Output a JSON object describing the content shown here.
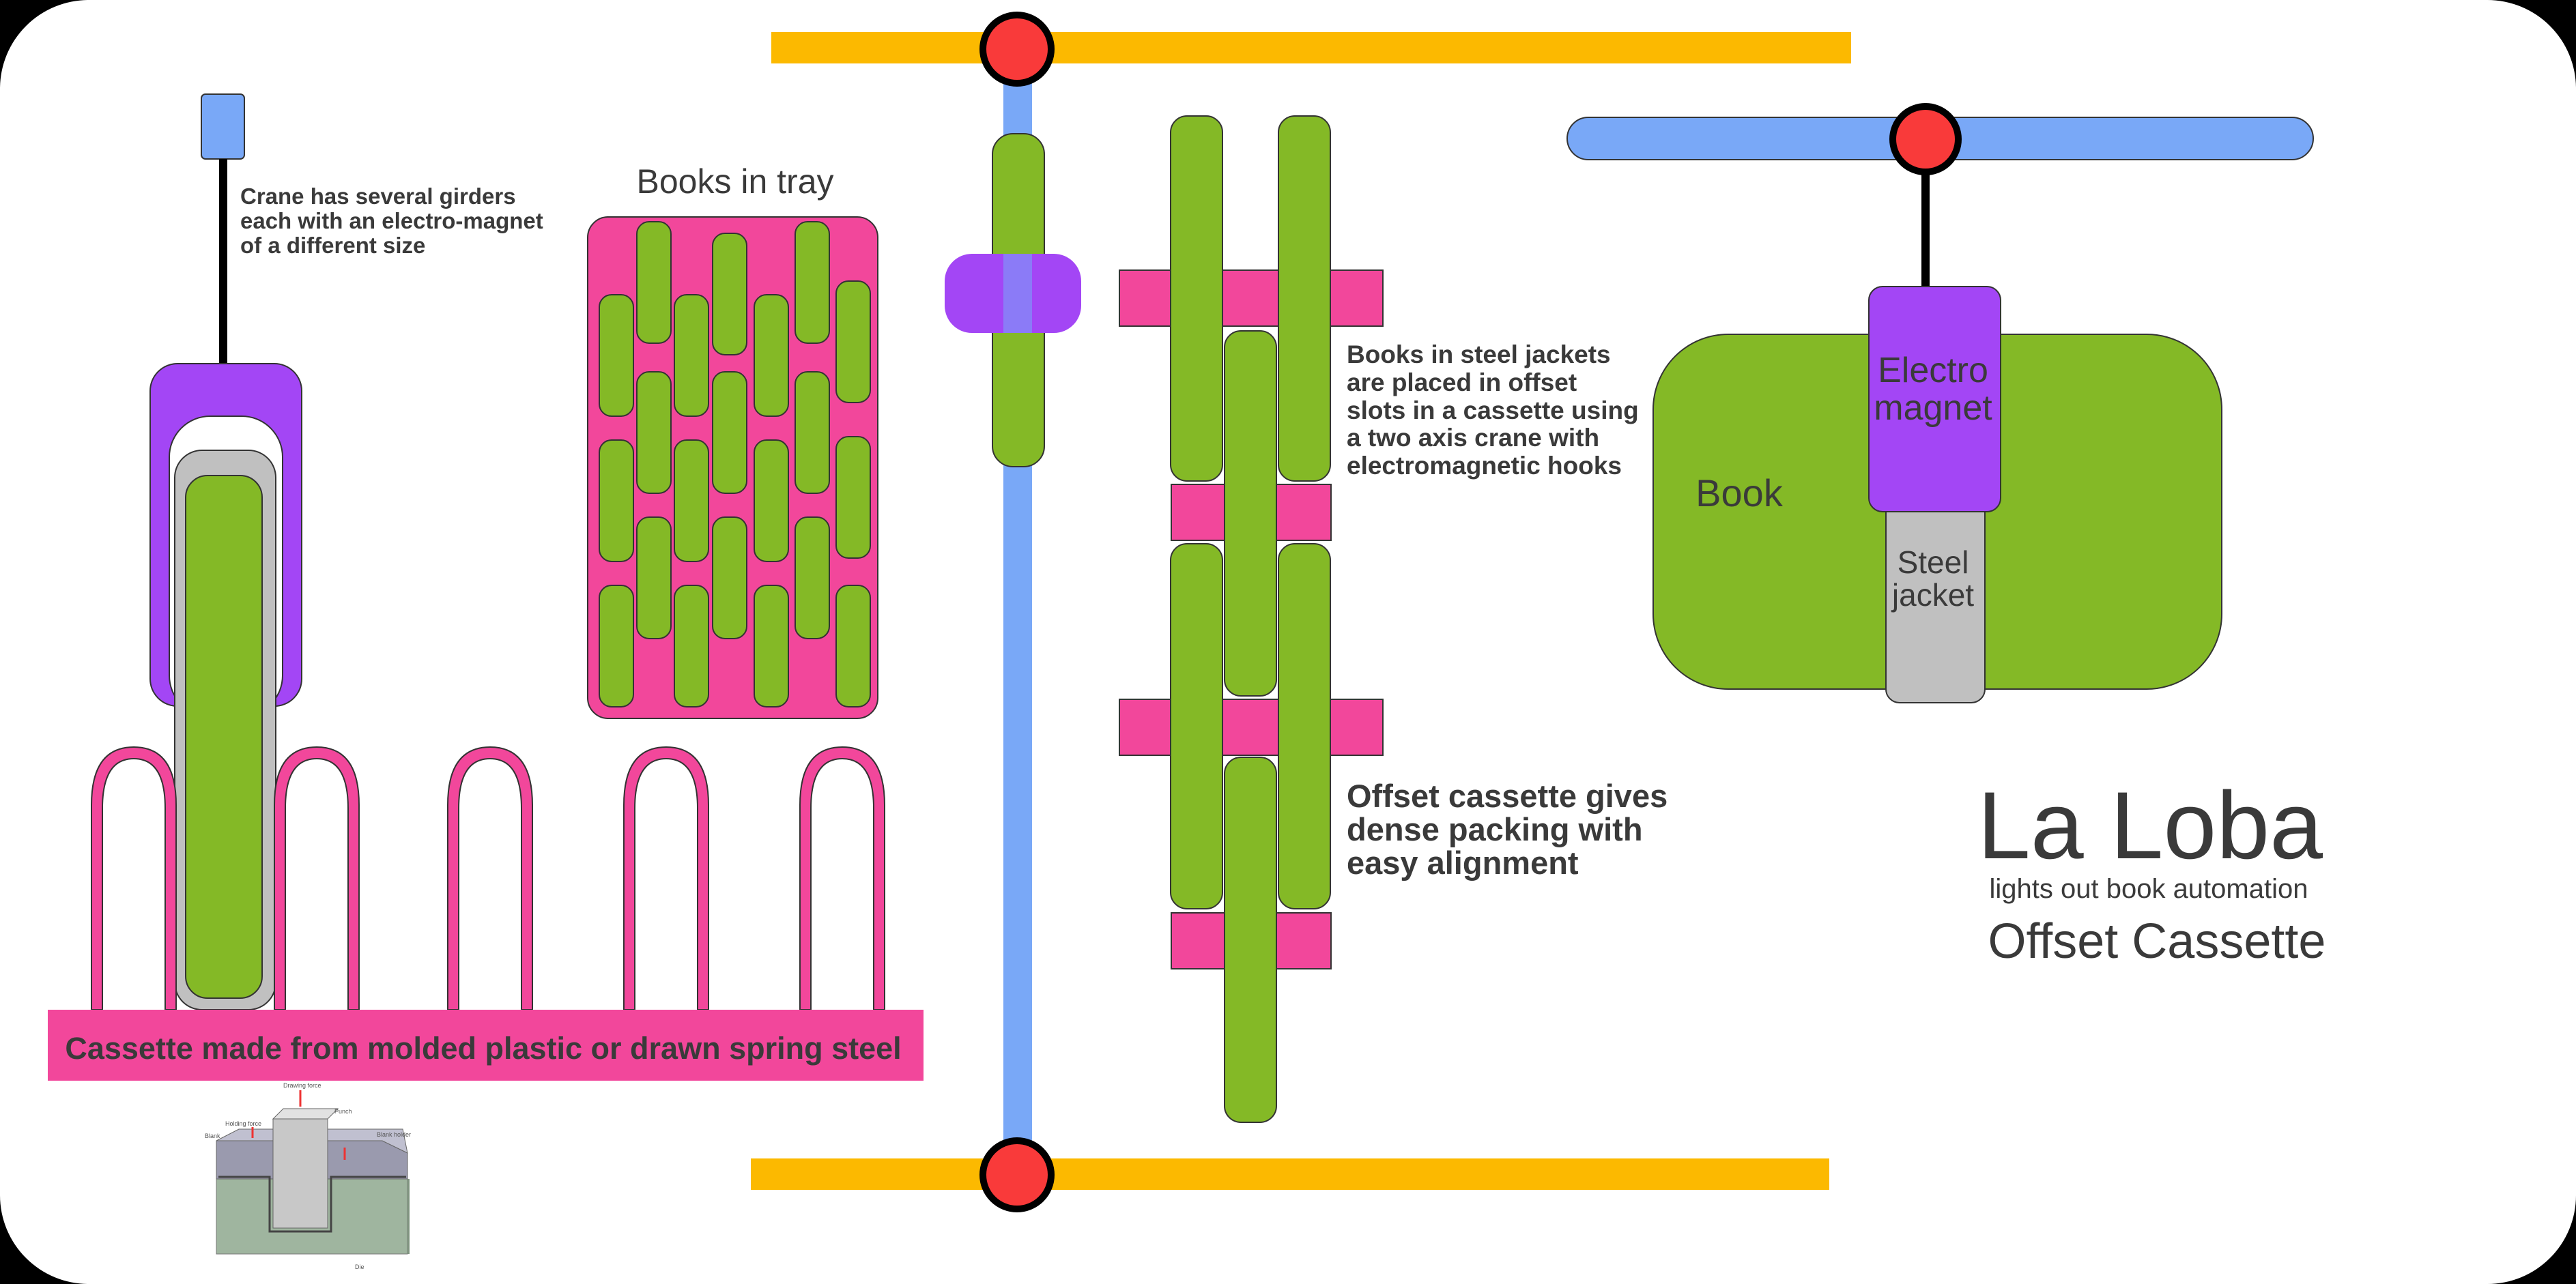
{
  "annotations": {
    "crane_note": [
      "Crane has several girders",
      "each with an electro-magnet",
      "of a different size"
    ],
    "tray_title": "Books in tray",
    "cassette_banner": "Cassette made from molded plastic or drawn spring steel",
    "jackets_note": [
      "Books in steel jackets",
      "are placed in offset",
      "slots in a cassette using",
      "a two axis crane with",
      "electromagnetic hooks"
    ],
    "offset_note": [
      "Offset cassette gives",
      "dense packing with",
      "easy alignment"
    ],
    "magnet_label": [
      "Electro",
      "magnet"
    ],
    "book_label": "Book",
    "jacket_label": [
      "Steel",
      "jacket"
    ]
  },
  "branding": {
    "title": "La Loba",
    "subtitle": "lights out book automation",
    "heading": "Offset Cassette"
  },
  "drawing_inset": {
    "labels": [
      "Drawing force",
      "Punch",
      "Holding force",
      "Blank",
      "Blank holder",
      "Die"
    ]
  },
  "colors": {
    "background": "#ffffff",
    "book": "#84b926",
    "slot": "#f2479b",
    "magnet": "#a346f5",
    "jacket": "#c0c0c0",
    "rail": "#fcb900",
    "girder": "#79a8f7",
    "joint": "#f93a3a"
  }
}
